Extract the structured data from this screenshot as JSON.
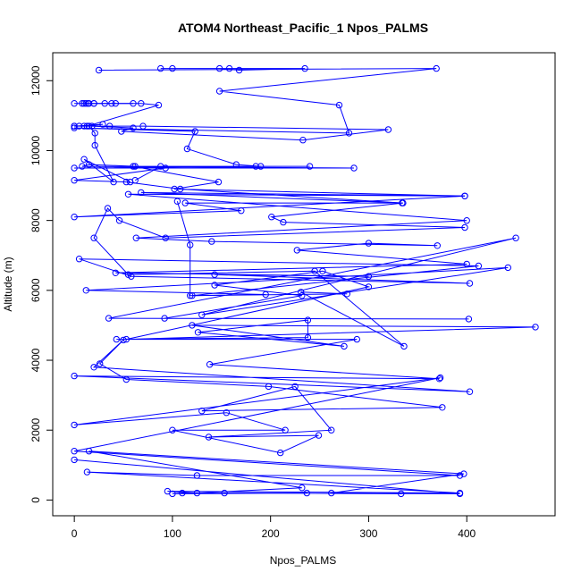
{
  "chart_data": {
    "type": "line",
    "title": "ATOM4 Northeast_Pacific_1 Npos_PALMS",
    "xlabel": "Npos_PALMS",
    "ylabel": "Altitude (m)",
    "xlim": [
      -22,
      490
    ],
    "ylim": [
      -450,
      12800
    ],
    "xticks": [
      0,
      100,
      200,
      300,
      400
    ],
    "yticks": [
      0,
      2000,
      4000,
      6000,
      8000,
      10000,
      12000
    ],
    "grid": false,
    "color": "#0000ff",
    "marker": "open-circle",
    "series": [
      {
        "points": [
          [
            25,
            12300
          ],
          [
            369,
            12350
          ],
          [
            148,
            11700
          ],
          [
            270,
            11300
          ],
          [
            280,
            10500
          ],
          [
            0,
            10650
          ],
          [
            123,
            10550
          ],
          [
            115,
            10050
          ],
          [
            165,
            9600
          ],
          [
            190,
            9550
          ],
          [
            0,
            9500
          ],
          [
            285,
            9500
          ],
          [
            8,
            9550
          ],
          [
            15,
            9600
          ],
          [
            62,
            9550
          ],
          [
            93,
            9500
          ],
          [
            0,
            9150
          ],
          [
            53,
            9100
          ],
          [
            108,
            8900
          ],
          [
            334,
            8500
          ],
          [
            113,
            8500
          ],
          [
            170,
            8280
          ],
          [
            0,
            8100
          ],
          [
            398,
            8700
          ],
          [
            55,
            8750
          ],
          [
            400,
            8000
          ],
          [
            63,
            7500
          ],
          [
            140,
            7400
          ],
          [
            370,
            7280
          ],
          [
            300,
            7350
          ],
          [
            227,
            7150
          ],
          [
            400,
            6750
          ],
          [
            42,
            6500
          ],
          [
            300,
            6400
          ],
          [
            143,
            6450
          ],
          [
            403,
            6200
          ],
          [
            58,
            6400
          ],
          [
            5,
            6900
          ],
          [
            412,
            6700
          ],
          [
            120,
            5850
          ],
          [
            195,
            5880
          ],
          [
            12,
            6000
          ],
          [
            442,
            6650
          ],
          [
            130,
            5300
          ],
          [
            450,
            7500
          ],
          [
            35,
            5200
          ],
          [
            402,
            5180
          ],
          [
            92,
            5200
          ],
          [
            232,
            5850
          ],
          [
            143,
            6150
          ],
          [
            253,
            6550
          ],
          [
            300,
            6100
          ],
          [
            53,
            4600
          ],
          [
            470,
            4950
          ],
          [
            120,
            5000
          ],
          [
            275,
            4400
          ],
          [
            126,
            4800
          ],
          [
            238,
            5150
          ],
          [
            238,
            4650
          ],
          [
            43,
            4600
          ],
          [
            288,
            4600
          ],
          [
            138,
            3880
          ],
          [
            372,
            3470
          ],
          [
            0,
            3550
          ],
          [
            403,
            3100
          ],
          [
            20,
            3800
          ],
          [
            50,
            4580
          ],
          [
            26,
            3900
          ],
          [
            53,
            3450
          ],
          [
            198,
            3250
          ],
          [
            375,
            2650
          ],
          [
            130,
            2550
          ],
          [
            225,
            3250
          ],
          [
            262,
            2000
          ],
          [
            137,
            1800
          ],
          [
            249,
            1850
          ],
          [
            210,
            1350
          ],
          [
            100,
            2000
          ],
          [
            215,
            2000
          ],
          [
            155,
            2500
          ],
          [
            0,
            2150
          ],
          [
            373,
            3500
          ],
          [
            0,
            1400
          ],
          [
            393,
            700
          ],
          [
            125,
            700
          ],
          [
            13,
            800
          ],
          [
            393,
            200
          ],
          [
            95,
            250
          ],
          [
            125,
            200
          ],
          [
            232,
            350
          ],
          [
            15,
            1400
          ],
          [
            397,
            750
          ],
          [
            262,
            200
          ],
          [
            333,
            180
          ],
          [
            153,
            200
          ],
          [
            237,
            200
          ],
          [
            100,
            180
          ],
          [
            110,
            200
          ],
          [
            393,
            180
          ],
          [
            0,
            1150
          ]
        ]
      },
      {
        "points": [
          [
            100,
            12350
          ],
          [
            158,
            12350
          ],
          [
            88,
            12350
          ],
          [
            235,
            12350
          ],
          [
            168,
            12300
          ],
          [
            148,
            12350
          ]
        ]
      },
      {
        "points": [
          [
            0,
            11350
          ],
          [
            10,
            11350
          ],
          [
            20,
            11350
          ],
          [
            68,
            11350
          ],
          [
            86,
            11300
          ],
          [
            13,
            10700
          ],
          [
            29,
            10750
          ],
          [
            0,
            10700
          ],
          [
            18,
            10700
          ],
          [
            60,
            10650
          ],
          [
            48,
            10550
          ],
          [
            233,
            10300
          ],
          [
            320,
            10600
          ],
          [
            70,
            10700
          ],
          [
            36,
            10700
          ],
          [
            10,
            10700
          ],
          [
            5,
            10700
          ],
          [
            0,
            10700
          ],
          [
            15,
            10700
          ],
          [
            21,
            10500
          ],
          [
            21,
            10150
          ],
          [
            40,
            9100
          ],
          [
            10,
            9750
          ],
          [
            57,
            9100
          ]
        ]
      },
      {
        "points": [
          [
            15,
            11350
          ],
          [
            38,
            11350
          ],
          [
            60,
            11350
          ],
          [
            31,
            11350
          ],
          [
            8,
            11350
          ],
          [
            20,
            11350
          ],
          [
            14,
            11350
          ],
          [
            12,
            11350
          ],
          [
            42,
            11350
          ]
        ]
      },
      {
        "points": [
          [
            62,
            9150
          ],
          [
            88,
            9550
          ],
          [
            185,
            9550
          ],
          [
            240,
            9550
          ],
          [
            60,
            9550
          ],
          [
            147,
            9100
          ],
          [
            102,
            8900
          ],
          [
            398,
            8700
          ],
          [
            68,
            8800
          ],
          [
            335,
            8500
          ],
          [
            201,
            8100
          ],
          [
            213,
            7950
          ],
          [
            398,
            7800
          ],
          [
            93,
            7500
          ],
          [
            46,
            8000
          ],
          [
            34,
            8350
          ],
          [
            20,
            7500
          ],
          [
            55,
            6450
          ],
          [
            245,
            6550
          ],
          [
            336,
            4400
          ],
          [
            231,
            5950
          ],
          [
            278,
            5900
          ],
          [
            118,
            5850
          ],
          [
            118,
            7300
          ],
          [
            105,
            8550
          ]
        ]
      }
    ]
  }
}
